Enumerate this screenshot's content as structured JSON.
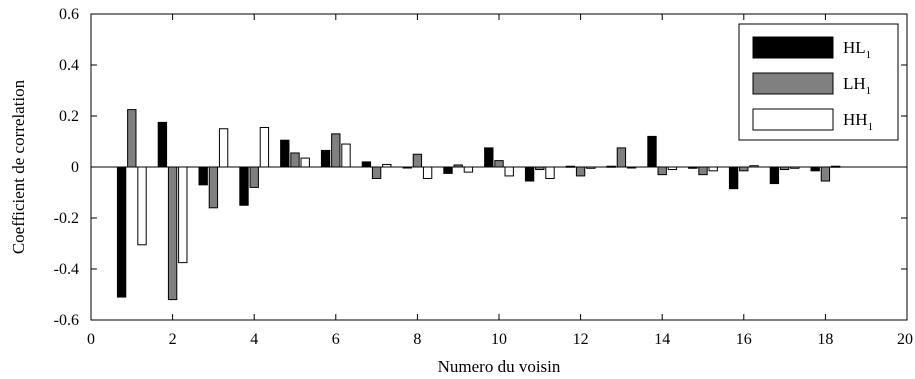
{
  "chart_data": {
    "type": "bar",
    "title": "",
    "xlabel": "Numero du voisin",
    "ylabel": "Coefficient de correlation",
    "xlim": [
      0,
      20
    ],
    "ylim": [
      -0.6,
      0.6
    ],
    "x_ticks": [
      "0",
      "2",
      "4",
      "6",
      "8",
      "10",
      "12",
      "14",
      "16",
      "18",
      "20"
    ],
    "y_ticks": [
      "0.6",
      "0.4",
      "0.2",
      "0",
      "-0.2",
      "-0.4",
      "-0.6"
    ],
    "grid": false,
    "legend_position": "top-right",
    "categories": [
      1,
      2,
      3,
      4,
      5,
      6,
      7,
      8,
      9,
      10,
      11,
      12,
      13,
      14,
      15,
      16,
      17,
      18
    ],
    "series": [
      {
        "name": "HL",
        "subscript": "1",
        "color": "#000000",
        "values": [
          -0.51,
          0.175,
          -0.07,
          -0.15,
          0.105,
          0.065,
          0.02,
          -0.003,
          -0.025,
          0.075,
          -0.055,
          0.003,
          0.003,
          0.12,
          -0.005,
          -0.085,
          -0.065,
          -0.015
        ]
      },
      {
        "name": "LH",
        "subscript": "1",
        "color": "#808080",
        "values": [
          0.225,
          -0.52,
          -0.16,
          -0.08,
          0.055,
          0.13,
          -0.045,
          0.05,
          0.008,
          0.025,
          -0.01,
          -0.035,
          0.075,
          -0.03,
          -0.03,
          -0.015,
          -0.01,
          -0.055
        ]
      },
      {
        "name": "HH",
        "subscript": "1",
        "color": "#ffffff",
        "values": [
          -0.305,
          -0.375,
          0.15,
          0.155,
          0.035,
          0.09,
          0.01,
          -0.045,
          -0.02,
          -0.035,
          -0.045,
          -0.005,
          -0.003,
          -0.01,
          -0.015,
          0.005,
          -0.005,
          0.003
        ]
      }
    ]
  }
}
